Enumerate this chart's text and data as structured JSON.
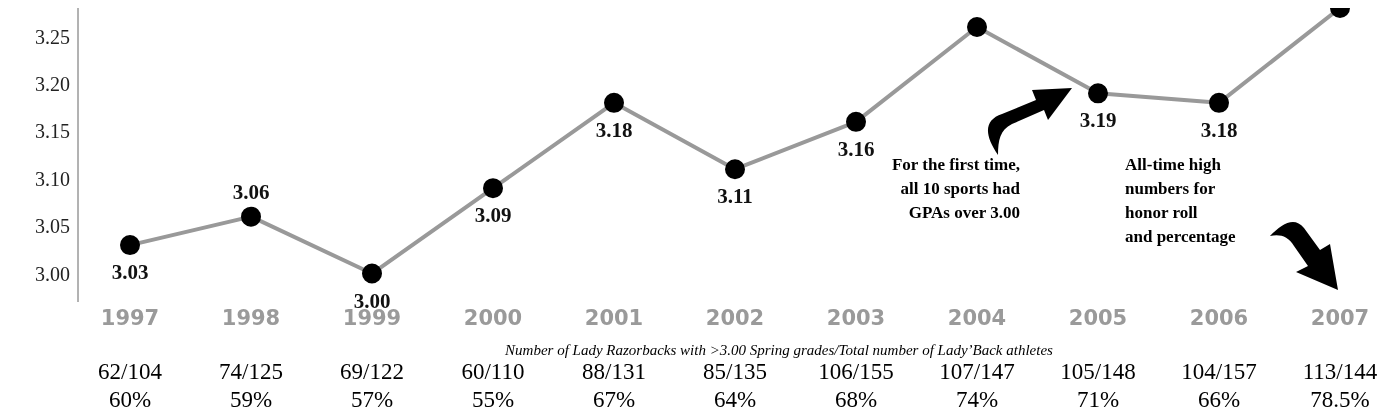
{
  "chart_data": {
    "type": "line",
    "categories": [
      "1997",
      "1998",
      "1999",
      "2000",
      "2001",
      "2002",
      "2003",
      "2004",
      "2005",
      "2006",
      "2007"
    ],
    "series": [
      {
        "color": "#999999",
        "values": [
          3.03,
          3.06,
          3.0,
          3.09,
          3.18,
          3.11,
          3.16,
          3.26,
          3.19,
          3.18,
          3.28
        ],
        "value_labels": [
          "3.03",
          "3.06",
          "3.00",
          "3.09",
          "3.18",
          "3.11",
          "3.16",
          null,
          "3.19",
          "3.18",
          null
        ]
      }
    ],
    "ylim": [
      2.97,
      3.28
    ],
    "yticks": [
      {
        "value": 3,
        "label": "3.00"
      },
      3.05,
      {
        "value": 3.1,
        "label": "3.10"
      },
      3.15,
      {
        "value": 3.2,
        "label": "3.20"
      },
      3.25
    ],
    "grid": false,
    "legend": false,
    "marker": "circle",
    "line_style": "solid",
    "xlabel": "Number of Lady Razorbacks with >3.00 Spring grades/Total number of Lady’Back athletes",
    "annotations": [
      "For the first time,\nall 10 sports had\nGPAs over 3.00",
      "All-time high\nnumbers for\nhonor roll\nand percentage",
      "62/104",
      "74/125",
      "69/122",
      "60/110",
      "88/131",
      "85/135",
      "106/155",
      "107/147",
      "105/148",
      "104/157",
      "113/144",
      "60%",
      "59%",
      "57%",
      "55%",
      "67%",
      "64%",
      "68%",
      "74%",
      "71%",
      "66%",
      "78.5%"
    ]
  }
}
